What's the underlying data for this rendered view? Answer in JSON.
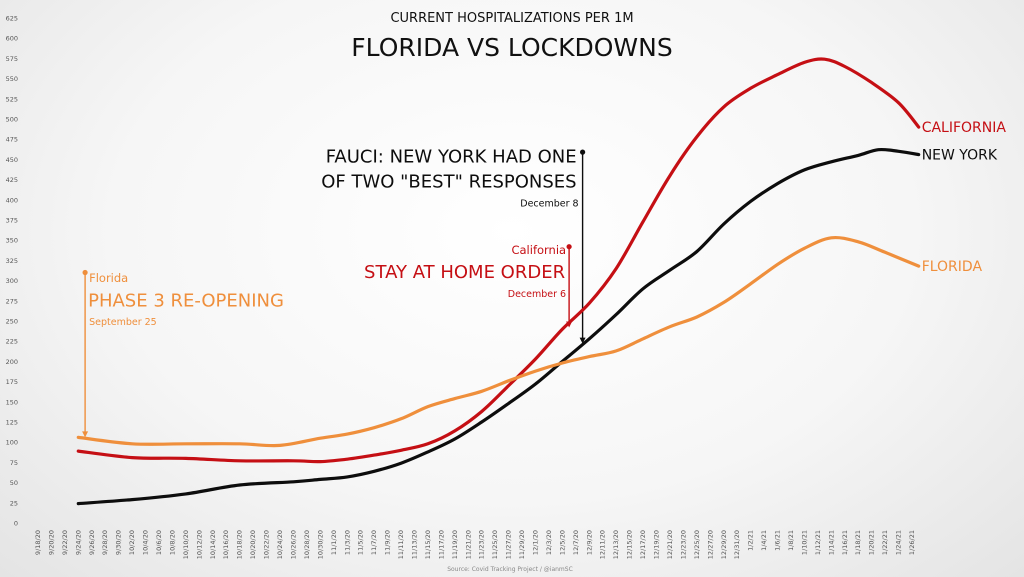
{
  "colors": {
    "california": "#c50f14",
    "new_york": "#0d0d0d",
    "florida": "#ef8f3c",
    "background": "#f2f2f2"
  },
  "chart_data": {
    "type": "line",
    "title": "CURRENT HOSPITALIZATIONS PER 1M",
    "subtitle": "FLORIDA VS LOCKDOWNS",
    "source": "Source: Covid Tracking Project  / @ianmSC",
    "ylim": [
      0,
      625
    ],
    "yticks": [
      0,
      25,
      50,
      75,
      100,
      125,
      150,
      175,
      200,
      225,
      250,
      275,
      300,
      325,
      350,
      375,
      400,
      425,
      450,
      475,
      500,
      525,
      550,
      575,
      600,
      625
    ],
    "x_tick_labels": [
      "9/18/20",
      "9/20/20",
      "9/22/20",
      "9/24/20",
      "9/26/20",
      "9/28/20",
      "9/30/20",
      "10/2/20",
      "10/4/20",
      "10/6/20",
      "10/8/20",
      "10/10/20",
      "10/12/20",
      "10/14/20",
      "10/16/20",
      "10/18/20",
      "10/20/20",
      "10/22/20",
      "10/24/20",
      "10/26/20",
      "10/28/20",
      "10/30/20",
      "11/1/20",
      "11/3/20",
      "11/5/20",
      "11/7/20",
      "11/9/20",
      "11/11/20",
      "11/13/20",
      "11/15/20",
      "11/17/20",
      "11/19/20",
      "11/21/20",
      "11/23/20",
      "11/25/20",
      "11/27/20",
      "11/29/20",
      "12/1/20",
      "12/3/20",
      "12/5/20",
      "12/7/20",
      "12/9/20",
      "12/11/20",
      "12/13/20",
      "12/15/20",
      "12/17/20",
      "12/19/20",
      "12/21/20",
      "12/23/20",
      "12/25/20",
      "12/27/20",
      "12/29/20",
      "12/31/20",
      "1/2/21",
      "1/4/21",
      "1/6/21",
      "1/8/21",
      "1/10/21",
      "1/12/21",
      "1/14/21",
      "1/16/21",
      "1/18/21",
      "1/20/21",
      "1/22/21",
      "1/24/21",
      "1/26/21"
    ],
    "series": [
      {
        "name": "CALIFORNIA",
        "color": "#c50f14",
        "points": [
          [
            "9/24/20",
            89
          ],
          [
            "10/2/20",
            81
          ],
          [
            "10/10/20",
            80
          ],
          [
            "10/18/20",
            77
          ],
          [
            "10/26/20",
            77
          ],
          [
            "10/30/20",
            76
          ],
          [
            "11/3/20",
            79
          ],
          [
            "11/7/20",
            84
          ],
          [
            "11/11/20",
            90
          ],
          [
            "11/15/20",
            98
          ],
          [
            "11/19/20",
            114
          ],
          [
            "11/23/20",
            138
          ],
          [
            "11/27/20",
            170
          ],
          [
            "12/1/20",
            203
          ],
          [
            "12/5/20",
            240
          ],
          [
            "12/9/20",
            272
          ],
          [
            "12/13/20",
            315
          ],
          [
            "12/17/20",
            373
          ],
          [
            "12/21/20",
            430
          ],
          [
            "12/25/20",
            478
          ],
          [
            "12/29/20",
            515
          ],
          [
            "1/2/21",
            538
          ],
          [
            "1/6/21",
            555
          ],
          [
            "1/10/21",
            570
          ],
          [
            "1/13/21",
            574
          ],
          [
            "1/16/21",
            565
          ],
          [
            "1/20/21",
            545
          ],
          [
            "1/24/21",
            520
          ],
          [
            "1/27/21",
            490
          ]
        ]
      },
      {
        "name": "NEW YORK",
        "color": "#0d0d0d",
        "points": [
          [
            "9/24/20",
            24
          ],
          [
            "10/2/20",
            29
          ],
          [
            "10/10/20",
            36
          ],
          [
            "10/18/20",
            47
          ],
          [
            "10/26/20",
            51
          ],
          [
            "10/30/20",
            54
          ],
          [
            "11/3/20",
            57
          ],
          [
            "11/7/20",
            64
          ],
          [
            "11/11/20",
            74
          ],
          [
            "11/15/20",
            88
          ],
          [
            "11/19/20",
            104
          ],
          [
            "11/23/20",
            125
          ],
          [
            "11/27/20",
            148
          ],
          [
            "12/1/20",
            172
          ],
          [
            "12/5/20",
            200
          ],
          [
            "12/9/20",
            228
          ],
          [
            "12/13/20",
            258
          ],
          [
            "12/17/20",
            290
          ],
          [
            "12/21/20",
            313
          ],
          [
            "12/25/20",
            336
          ],
          [
            "12/29/20",
            370
          ],
          [
            "1/2/21",
            398
          ],
          [
            "1/6/21",
            420
          ],
          [
            "1/10/21",
            437
          ],
          [
            "1/14/21",
            447
          ],
          [
            "1/18/21",
            455
          ],
          [
            "1/21/21",
            462
          ],
          [
            "1/24/21",
            460
          ],
          [
            "1/27/21",
            456
          ]
        ]
      },
      {
        "name": "FLORIDA",
        "color": "#ef8f3c",
        "points": [
          [
            "9/24/20",
            106
          ],
          [
            "10/2/20",
            98
          ],
          [
            "10/10/20",
            98
          ],
          [
            "10/18/20",
            98
          ],
          [
            "10/24/20",
            96
          ],
          [
            "10/30/20",
            105
          ],
          [
            "11/3/20",
            110
          ],
          [
            "11/7/20",
            118
          ],
          [
            "11/11/20",
            129
          ],
          [
            "11/15/20",
            144
          ],
          [
            "11/19/20",
            154
          ],
          [
            "11/23/20",
            163
          ],
          [
            "11/27/20",
            176
          ],
          [
            "12/1/20",
            188
          ],
          [
            "12/5/20",
            198
          ],
          [
            "12/9/20",
            206
          ],
          [
            "12/13/20",
            213
          ],
          [
            "12/17/20",
            228
          ],
          [
            "12/21/20",
            243
          ],
          [
            "12/25/20",
            255
          ],
          [
            "12/29/20",
            273
          ],
          [
            "1/2/21",
            296
          ],
          [
            "1/6/21",
            320
          ],
          [
            "1/10/21",
            340
          ],
          [
            "1/14/21",
            353
          ],
          [
            "1/18/21",
            348
          ],
          [
            "1/22/21",
            335
          ],
          [
            "1/27/21",
            318
          ]
        ]
      }
    ],
    "annotations": [
      {
        "id": "florida",
        "date": "9/25/20",
        "top_value": 310,
        "bottom_value": 106,
        "label": "Florida",
        "headline": "PHASE 3 RE-OPENING",
        "note": "September 25",
        "color": "#ef8f3c"
      },
      {
        "id": "california",
        "date": "12/6/20",
        "top_value": 342,
        "bottom_value": 242,
        "label": "California",
        "headline": "STAY AT HOME ORDER",
        "note": "December 6",
        "color": "#c50f14"
      },
      {
        "id": "newyork",
        "date": "12/8/20",
        "top_value": 459,
        "bottom_value": 222,
        "headline_line1": "FAUCI: NEW YORK HAD ONE",
        "headline_line2": "OF TWO \"BEST\" RESPONSES",
        "note": "December 8",
        "color": "#0d0d0d"
      }
    ]
  }
}
